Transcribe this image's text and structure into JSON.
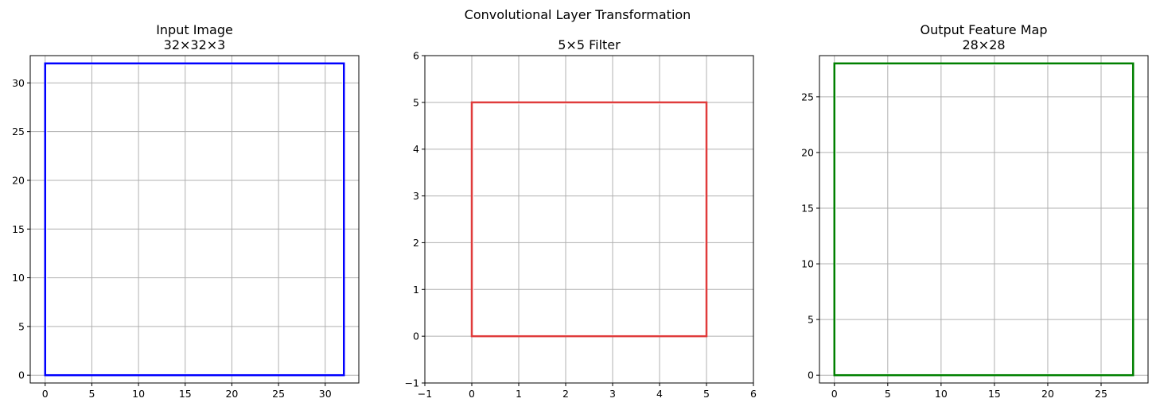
{
  "figure": {
    "suptitle": "Convolutional Layer Transformation"
  },
  "chart_data": [
    {
      "type": "rectangle-outline",
      "title_lines": [
        "Input Image",
        "32×32×3"
      ],
      "xlim": [
        -1.6,
        33.6
      ],
      "ylim": [
        -0.8,
        32.8
      ],
      "xticks": [
        0,
        5,
        10,
        15,
        20,
        25,
        30
      ],
      "yticks": [
        0,
        5,
        10,
        15,
        20,
        25,
        30
      ],
      "grid": true,
      "rect": {
        "x": 0,
        "y": 0,
        "width": 32,
        "height": 32
      },
      "color": "#0000ff"
    },
    {
      "type": "rectangle-outline",
      "title_lines": [
        "5×5 Filter"
      ],
      "xlim": [
        -1,
        6
      ],
      "ylim": [
        -1,
        6
      ],
      "xticks": [
        -1,
        0,
        1,
        2,
        3,
        4,
        5,
        6
      ],
      "yticks": [
        -1,
        0,
        1,
        2,
        3,
        4,
        5,
        6
      ],
      "grid": true,
      "rect": {
        "x": 0,
        "y": 0,
        "width": 5,
        "height": 5
      },
      "color": "#e03c3c"
    },
    {
      "type": "rectangle-outline",
      "title_lines": [
        "Output Feature Map",
        "28×28"
      ],
      "xlim": [
        -1.4,
        29.4
      ],
      "ylim": [
        -0.7,
        28.7
      ],
      "xticks": [
        0,
        5,
        10,
        15,
        20,
        25
      ],
      "yticks": [
        0,
        5,
        10,
        15,
        20,
        25
      ],
      "grid": true,
      "rect": {
        "x": 0,
        "y": 0,
        "width": 28,
        "height": 28
      },
      "color": "#008000"
    }
  ]
}
